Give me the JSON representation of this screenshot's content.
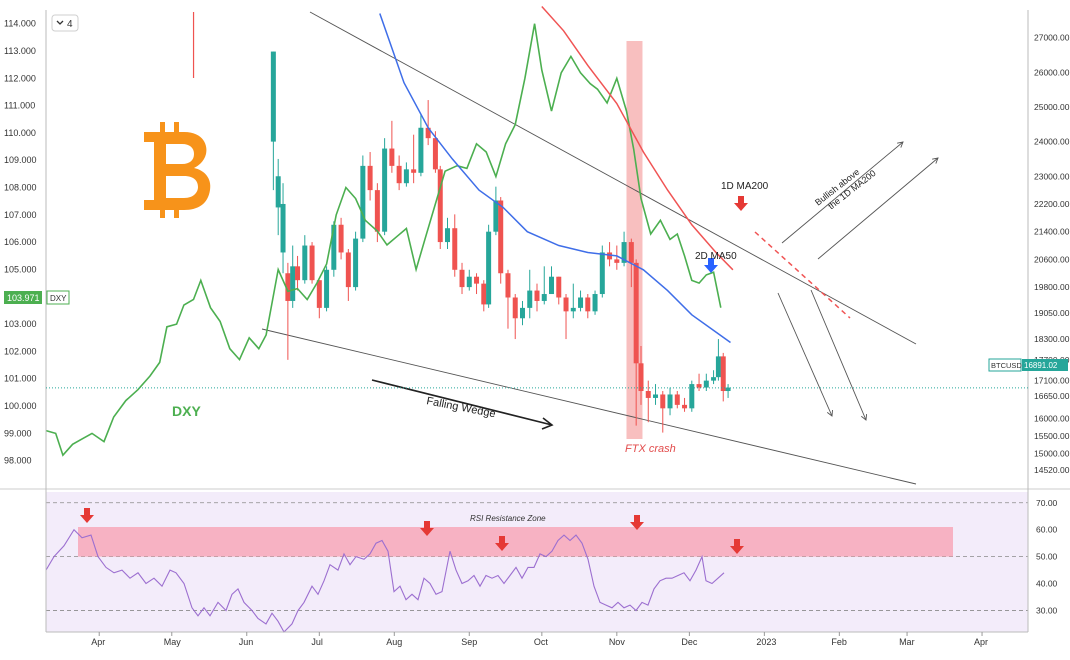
{
  "colors": {
    "bull": "#26a69a",
    "bear": "#ef5350",
    "dxy": "#4caf50",
    "ma50": "#3f6ee8",
    "ma200": "#f05454",
    "trend": "#555555",
    "rsi": "#9c6fd0",
    "rsi_band": "#f7a8b8",
    "rsi_bg": "#eee4f8",
    "ftx": "#f28b8b",
    "axis_text": "#333333",
    "btc_logo": "#f7931a"
  },
  "toolbar": {
    "collapse_count": "4"
  },
  "chart_data": [
    {
      "type": "candlestick",
      "name": "BTCUSD",
      "xlabel": "",
      "ylabel": "",
      "xlim": [
        "2023-03-10",
        "2023-04-18"
      ],
      "ylim": [
        14000,
        27800
      ],
      "right_ticks": [
        "27000.00",
        "26000.00",
        "25000.00",
        "24000.00",
        "23000.00",
        "22200.00",
        "21400.00",
        "20600.00",
        "19800.00",
        "19050.00",
        "18300.00",
        "17700.00",
        "17100.00",
        "16650.00",
        "16000.00",
        "15500.00",
        "15000.00",
        "14520.00"
      ],
      "right_tick_values": [
        27000,
        26000,
        25000,
        24000,
        23000,
        22200,
        21400,
        20600,
        19800,
        19050,
        18300,
        17700,
        17100,
        16650,
        16000,
        15500,
        15000,
        14520
      ],
      "x_ticks": [
        "Apr",
        "May",
        "Jun",
        "Jul",
        "Aug",
        "Sep",
        "Oct",
        "Nov",
        "Dec",
        "2023",
        "Feb",
        "Mar",
        "Apr"
      ],
      "x_tick_dates": [
        "2022-04-01",
        "2022-05-01",
        "2022-06-01",
        "2022-07-01",
        "2022-08-01",
        "2022-09-01",
        "2022-10-01",
        "2022-11-01",
        "2022-12-01",
        "2023-01-01",
        "2023-02-01",
        "2023-03-01",
        "2023-04-01"
      ],
      "last_price": {
        "label": "BTCUSD",
        "value": "16891.02"
      },
      "annotations": {
        "ma200": "1D MA200",
        "ma50": "2D MA50",
        "bullish": "Bullish above the 1D MA200",
        "wedge": "Falling Wedge",
        "ftx": "FTX crash"
      }
    },
    {
      "type": "line",
      "name": "DXY",
      "ylim": [
        97.0,
        114.5
      ],
      "left_ticks": [
        "114.000",
        "113.000",
        "112.000",
        "111.000",
        "110.000",
        "109.000",
        "108.000",
        "107.000",
        "106.000",
        "105.000",
        "103.000",
        "102.000",
        "101.000",
        "100.000",
        "99.000",
        "98.000"
      ],
      "left_tick_values": [
        114,
        113,
        112,
        111,
        110,
        109,
        108,
        107,
        106,
        105,
        103,
        102,
        101,
        100,
        99,
        98
      ],
      "last_value": {
        "value": "103.971",
        "label": "DXY"
      },
      "series_label": "DXY"
    },
    {
      "type": "line",
      "name": "RSI",
      "ylim": [
        22,
        74
      ],
      "ticks": [
        "70.00",
        "60.00",
        "50.00",
        "40.00",
        "30.00"
      ],
      "tick_values": [
        70,
        60,
        50,
        40,
        30
      ],
      "zone_label": "RSI Resistance Zone",
      "zone": [
        50,
        61
      ]
    }
  ]
}
